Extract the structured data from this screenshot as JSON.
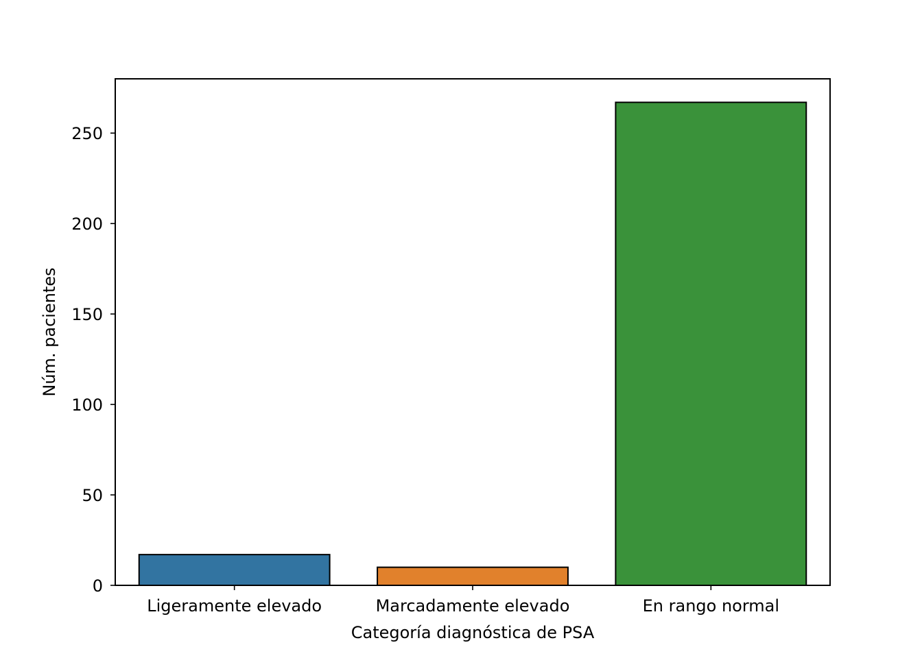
{
  "chart_data": {
    "type": "bar",
    "title": "",
    "xlabel": "Categoría diagnóstica de PSA",
    "ylabel": "Núm. pacientes",
    "categories": [
      "Ligeramente elevado",
      "Marcadamente elevado",
      "En rango normal"
    ],
    "values": [
      17,
      10,
      267
    ],
    "colors": [
      "#3274a1",
      "#e1812c",
      "#3a923a"
    ],
    "edge_color": "#000000",
    "ylim": [
      0,
      280
    ],
    "yticks": [
      0,
      50,
      100,
      150,
      200,
      250
    ],
    "grid": false,
    "legend": "none"
  }
}
